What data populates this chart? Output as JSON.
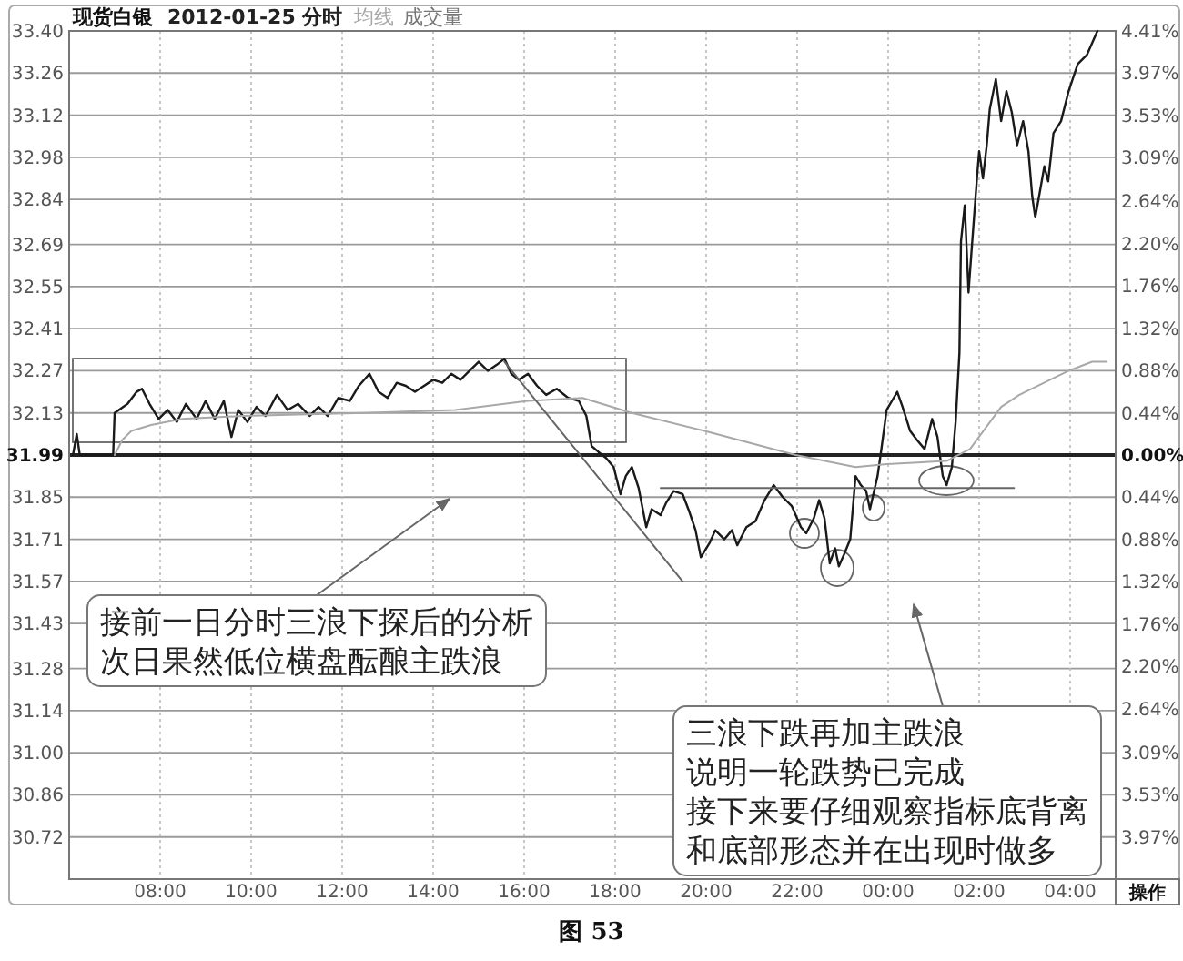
{
  "chart_data": {
    "type": "line",
    "title": "现货白银",
    "subtitle": "2012-01-25 分时",
    "series": [
      {
        "color": "#1a1a1a",
        "x": [
          "2012-01-25T06:05",
          "2012-01-25T06:10",
          "2012-01-25T06:14",
          "2012-01-25T06:58",
          "2012-01-25T07:00",
          "2012-01-25T07:17",
          "2012-01-25T07:29",
          "2012-01-25T07:36",
          "2012-01-25T07:46",
          "2012-01-25T07:58",
          "2012-01-25T08:10",
          "2012-01-25T08:22",
          "2012-01-25T08:34",
          "2012-01-25T08:48",
          "2012-01-25T09:00",
          "2012-01-25T09:12",
          "2012-01-25T09:24",
          "2012-01-25T09:34",
          "2012-01-25T09:43",
          "2012-01-25T09:55",
          "2012-01-25T10:07",
          "2012-01-25T10:19",
          "2012-01-25T10:34",
          "2012-01-25T10:48",
          "2012-01-25T11:02",
          "2012-01-25T11:17",
          "2012-01-25T11:29",
          "2012-01-25T11:41",
          "2012-01-25T11:55",
          "2012-01-25T12:10",
          "2012-01-25T12:22",
          "2012-01-25T12:36",
          "2012-01-25T12:48",
          "2012-01-25T13:00",
          "2012-01-25T13:12",
          "2012-01-25T13:24",
          "2012-01-25T13:36",
          "2012-01-25T13:48",
          "2012-01-25T14:00",
          "2012-01-25T14:12",
          "2012-01-25T14:24",
          "2012-01-25T14:36",
          "2012-01-25T14:48",
          "2012-01-25T15:00",
          "2012-01-25T15:12",
          "2012-01-25T15:24",
          "2012-01-25T15:34",
          "2012-01-25T15:43",
          "2012-01-25T15:53",
          "2012-01-25T16:05",
          "2012-01-25T16:17",
          "2012-01-25T16:29",
          "2012-01-25T16:43",
          "2012-01-25T16:58",
          "2012-01-25T17:12",
          "2012-01-25T17:22",
          "2012-01-25T17:29",
          "2012-01-25T17:38",
          "2012-01-25T17:48",
          "2012-01-25T17:58",
          "2012-01-25T18:07",
          "2012-01-25T18:14",
          "2012-01-25T18:22",
          "2012-01-25T18:31",
          "2012-01-25T18:41",
          "2012-01-25T18:48",
          "2012-01-25T19:00",
          "2012-01-25T19:07",
          "2012-01-25T19:17",
          "2012-01-25T19:29",
          "2012-01-25T19:38",
          "2012-01-25T19:46",
          "2012-01-25T19:53",
          "2012-01-25T20:05",
          "2012-01-25T20:12",
          "2012-01-25T20:24",
          "2012-01-25T20:34",
          "2012-01-25T20:41",
          "2012-01-25T20:53",
          "2012-01-25T21:05",
          "2012-01-25T21:17",
          "2012-01-25T21:29",
          "2012-01-25T21:41",
          "2012-01-25T21:53",
          "2012-01-25T22:05",
          "2012-01-25T22:12",
          "2012-01-25T22:22",
          "2012-01-25T22:29",
          "2012-01-25T22:36",
          "2012-01-25T22:43",
          "2012-01-25T22:50",
          "2012-01-25T22:55",
          "2012-01-25T23:02",
          "2012-01-25T23:10",
          "2012-01-25T23:17",
          "2012-01-25T23:24",
          "2012-01-25T23:31",
          "2012-01-25T23:36",
          "2012-01-25T23:46",
          "2012-01-25T23:50",
          "2012-01-25T23:58",
          "2012-01-26T00:05",
          "2012-01-26T00:12",
          "2012-01-26T00:19",
          "2012-01-26T00:29",
          "2012-01-26T00:38",
          "2012-01-26T00:48",
          "2012-01-26T00:58",
          "2012-01-26T01:05",
          "2012-01-26T01:12",
          "2012-01-26T01:17",
          "2012-01-26T01:24",
          "2012-01-26T01:29",
          "2012-01-26T01:34",
          "2012-01-26T01:36",
          "2012-01-26T01:41",
          "2012-01-26T01:46",
          "2012-01-26T01:50",
          "2012-01-26T01:55",
          "2012-01-26T01:58",
          "2012-01-26T02:00",
          "2012-01-26T02:05",
          "2012-01-26T02:10",
          "2012-01-26T02:14",
          "2012-01-26T02:22",
          "2012-01-26T02:29",
          "2012-01-26T02:36",
          "2012-01-26T02:43",
          "2012-01-26T02:50",
          "2012-01-26T02:58",
          "2012-01-26T03:05",
          "2012-01-26T03:10",
          "2012-01-26T03:14",
          "2012-01-26T03:19",
          "2012-01-26T03:26",
          "2012-01-26T03:31",
          "2012-01-26T03:38",
          "2012-01-26T03:48",
          "2012-01-26T03:58",
          "2012-01-26T04:10",
          "2012-01-26T04:22",
          "2012-01-26T04:36"
        ],
        "values": [
          31.99,
          32.06,
          31.99,
          31.99,
          32.13,
          32.16,
          32.2,
          32.21,
          32.16,
          32.11,
          32.14,
          32.1,
          32.16,
          32.11,
          32.17,
          32.11,
          32.17,
          32.05,
          32.14,
          32.1,
          32.15,
          32.12,
          32.19,
          32.14,
          32.16,
          32.12,
          32.15,
          32.12,
          32.18,
          32.17,
          32.22,
          32.26,
          32.2,
          32.18,
          32.23,
          32.22,
          32.2,
          32.22,
          32.24,
          32.23,
          32.26,
          32.24,
          32.27,
          32.3,
          32.27,
          32.29,
          32.31,
          32.26,
          32.24,
          32.26,
          32.22,
          32.19,
          32.21,
          32.18,
          32.17,
          32.12,
          32.02,
          32.0,
          31.98,
          31.95,
          31.86,
          31.92,
          31.95,
          31.88,
          31.75,
          31.81,
          31.79,
          31.83,
          31.87,
          31.86,
          31.8,
          31.74,
          31.65,
          31.7,
          31.74,
          31.71,
          31.74,
          31.69,
          31.75,
          31.77,
          31.84,
          31.89,
          31.85,
          31.82,
          31.75,
          31.73,
          31.78,
          31.84,
          31.78,
          31.63,
          31.68,
          31.62,
          31.66,
          31.71,
          31.92,
          31.89,
          31.87,
          31.81,
          31.92,
          31.99,
          32.14,
          32.17,
          32.2,
          32.15,
          32.07,
          32.04,
          32.01,
          32.11,
          32.05,
          31.92,
          31.89,
          31.95,
          32.1,
          32.33,
          32.7,
          32.82,
          32.53,
          32.67,
          32.84,
          32.94,
          33.0,
          32.91,
          33.02,
          33.14,
          33.24,
          33.1,
          33.2,
          33.13,
          33.02,
          33.1,
          33.0,
          32.85,
          32.78,
          32.85,
          32.95,
          32.9,
          33.06,
          33.1,
          33.2,
          33.29,
          33.32,
          33.4
        ]
      },
      {
        "name": "均线",
        "color": "#a8a8a8",
        "x": [
          "2012-01-25T07:00",
          "2012-01-25T07:10",
          "2012-01-25T07:22",
          "2012-01-25T07:48",
          "2012-01-25T08:29",
          "2012-01-25T09:48",
          "2012-01-25T12:29",
          "2012-01-25T14:29",
          "2012-01-25T16:05",
          "2012-01-25T17:17",
          "2012-01-25T18:22",
          "2012-01-25T19:58",
          "2012-01-25T21:58",
          "2012-01-25T23:17",
          "2012-01-25T23:58",
          "2012-01-26T01:17",
          "2012-01-26T01:48",
          "2012-01-26T02:29",
          "2012-01-26T02:53",
          "2012-01-26T03:58",
          "2012-01-26T04:29",
          "2012-01-26T04:48"
        ],
        "values": [
          31.99,
          32.04,
          32.07,
          32.09,
          32.11,
          32.12,
          32.13,
          32.14,
          32.17,
          32.18,
          32.13,
          32.07,
          31.99,
          31.95,
          31.96,
          31.97,
          32.01,
          32.15,
          32.19,
          32.27,
          32.3,
          32.3
        ]
      },
      {
        "color": "#666666",
        "x": [
          "2012-01-25T19:00",
          "2012-01-26T02:46"
        ],
        "values": [
          31.88,
          31.88
        ]
      },
      {
        "color": "#666666",
        "x": [
          "2012-01-25T15:34",
          "2012-01-25T19:29"
        ],
        "values": [
          32.3,
          31.57
        ]
      }
    ],
    "xlim": [
      "2012-01-25T06:00",
      "2012-01-26T05:00"
    ],
    "xticks": [
      {
        "value": "2012-01-25T08:00",
        "label": "08:00"
      },
      {
        "value": "2012-01-25T10:00",
        "label": "10:00"
      },
      {
        "value": "2012-01-25T12:00",
        "label": "12:00"
      },
      {
        "value": "2012-01-25T14:00",
        "label": "14:00"
      },
      {
        "value": "2012-01-25T16:00",
        "label": "16:00"
      },
      {
        "value": "2012-01-25T18:00",
        "label": "18:00"
      },
      {
        "value": "2012-01-25T20:00",
        "label": "20:00"
      },
      {
        "value": "2012-01-25T22:00",
        "label": "22:00"
      },
      {
        "value": "2012-01-26T00:00",
        "label": "00:00"
      },
      {
        "value": "2012-01-26T02:00",
        "label": "02:00"
      },
      {
        "value": "2012-01-26T04:00",
        "label": "04:00"
      }
    ],
    "ylim": [
      30.58,
      33.4
    ],
    "yticks": [
      {
        "value": 33.4,
        "label": "33.40"
      },
      33.26,
      33.12,
      32.98,
      32.84,
      32.69,
      32.55,
      32.41,
      32.27,
      32.13,
      31.99,
      31.85,
      31.71,
      31.57,
      31.43,
      31.28,
      31.14,
      {
        "value": 31,
        "label": "31.00"
      },
      30.86,
      30.72
    ],
    "y2lim": [
      -4.41,
      4.41
    ],
    "y2ticks": [
      {
        "value": 4.41,
        "label": "4.41%"
      },
      {
        "value": 3.97,
        "label": "3.97%"
      },
      {
        "value": 3.53,
        "label": "3.53%"
      },
      {
        "value": 3.09,
        "label": "3.09%"
      },
      {
        "value": 2.64,
        "label": "2.64%"
      },
      {
        "value": 2.2,
        "label": "2.20%"
      },
      {
        "value": 1.76,
        "label": "1.76%"
      },
      {
        "value": 1.32,
        "label": "1.32%"
      },
      {
        "value": 0.88,
        "label": "0.88%"
      },
      {
        "value": 0.44,
        "label": "0.44%"
      },
      {
        "value": 0,
        "label": "0.00%"
      },
      {
        "value": -0.44,
        "label": "0.44%"
      },
      {
        "value": -0.88,
        "label": "0.88%"
      },
      {
        "value": -1.32,
        "label": "1.32%"
      },
      {
        "value": -1.76,
        "label": "1.76%"
      },
      {
        "value": -2.2,
        "label": "2.20%"
      },
      {
        "value": -2.64,
        "label": "2.64%"
      },
      {
        "value": -3.09,
        "label": "3.09%"
      },
      {
        "value": -3.53,
        "label": "3.53%"
      },
      {
        "value": -3.97,
        "label": "3.97%"
      }
    ],
    "grid": true,
    "legend": "top left",
    "ref_lines": [
      {
        "axis": "y",
        "value": 31.99,
        "color": "#222222"
      }
    ],
    "annotations": [
      "接前一日分时三浪下探后的分析次日果然低位横盘酝酿主跌浪",
      "三浪下跌再加主跌浪说明一轮跌势已完成接下来要仔细观察指标底背离和底部形态并在出现时做多",
      "成交量",
      "操作",
      "图 53"
    ]
  }
}
